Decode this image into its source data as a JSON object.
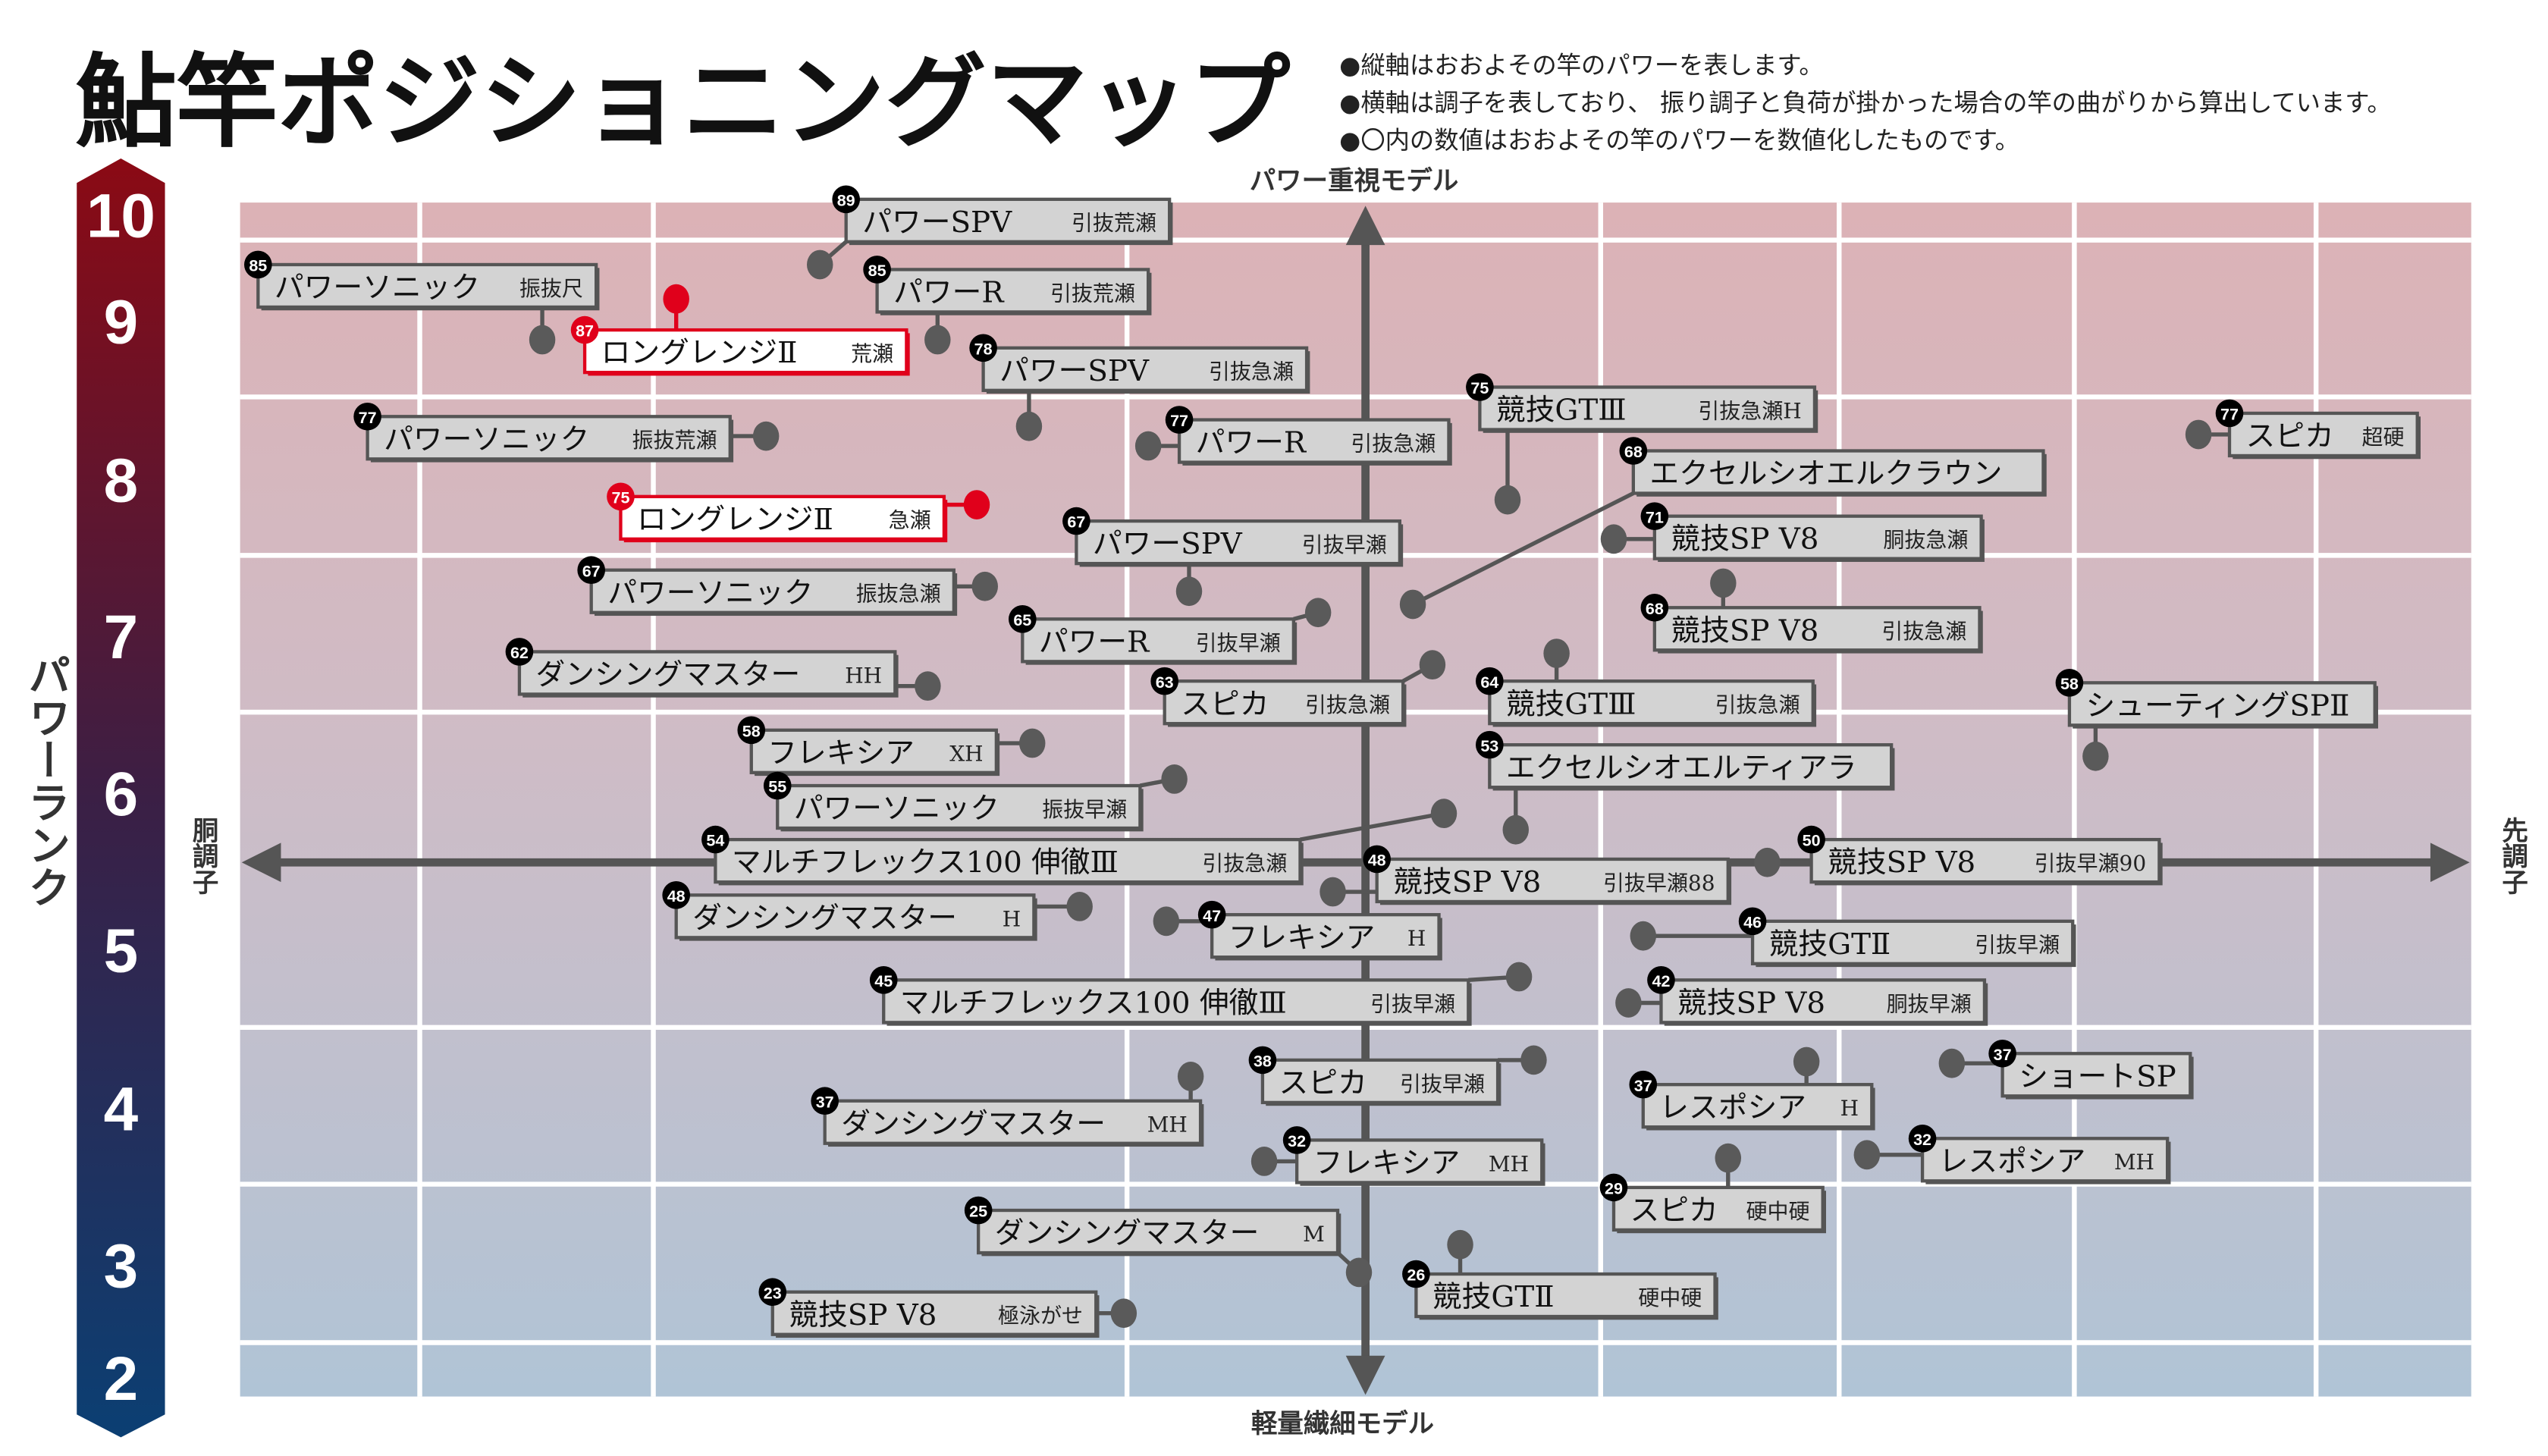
{
  "title": "鮎竿ポジショニングマップ",
  "notes": [
    "●縦軸はおおよその竿のパワーを表します。",
    "●横軸は調子を表しており、 振り調子と負荷が掛かった場合の竿の曲がりから算出しています。",
    "●〇内の数値はおおよその竿のパワーを数値化したものです。"
  ],
  "colors": {
    "highlight": "#e0001b",
    "box_bg": "#d3d3d3",
    "box_border": "#555555",
    "axis": "#555555",
    "rank_top": "#8b0a14",
    "rank_bottom": "#0b3f73"
  },
  "chart_data": {
    "type": "scatter",
    "title": "鮎竿ポジショニングマップ",
    "ylabel": "パワーランク",
    "y_ticks": [
      "10",
      "9",
      "8",
      "7",
      "6",
      "5",
      "4",
      "3",
      "2"
    ],
    "ylim": [
      2,
      10
    ],
    "axis_top": "パワー重視モデル",
    "axis_bottom": "軽量繊細モデル",
    "axis_left": "胴調子",
    "axis_right": "先調子",
    "grid": true,
    "points": [
      {
        "power": "89",
        "name": "パワーSPV",
        "variant": "引抜荒瀬",
        "highlight": false
      },
      {
        "power": "85",
        "name": "パワーソニック",
        "variant": "振抜尺",
        "highlight": false
      },
      {
        "power": "85",
        "name": "パワーR",
        "variant": "引抜荒瀬",
        "highlight": false
      },
      {
        "power": "87",
        "name": "ロングレンジⅡ",
        "variant": "荒瀬",
        "highlight": true
      },
      {
        "power": "78",
        "name": "パワーSPV",
        "variant": "引抜急瀬",
        "highlight": false
      },
      {
        "power": "75",
        "name": "競技GTⅢ",
        "variant": "引抜急瀬H",
        "highlight": false
      },
      {
        "power": "77",
        "name": "スピカ",
        "variant": "超硬",
        "highlight": false
      },
      {
        "power": "77",
        "name": "パワーソニック",
        "variant": "振抜荒瀬",
        "highlight": false
      },
      {
        "power": "77",
        "name": "パワーR",
        "variant": "引抜急瀬",
        "highlight": false
      },
      {
        "power": "68",
        "name": "エクセルシオエルクラウン",
        "variant": "",
        "highlight": false
      },
      {
        "power": "75",
        "name": "ロングレンジⅡ",
        "variant": "急瀬",
        "highlight": true
      },
      {
        "power": "71",
        "name": "競技SP V8",
        "variant": "胴抜急瀬",
        "highlight": false
      },
      {
        "power": "67",
        "name": "パワーSPV",
        "variant": "引抜早瀬",
        "highlight": false
      },
      {
        "power": "67",
        "name": "パワーソニック",
        "variant": "振抜急瀬",
        "highlight": false
      },
      {
        "power": "68",
        "name": "競技SP V8",
        "variant": "引抜急瀬",
        "highlight": false
      },
      {
        "power": "65",
        "name": "パワーR",
        "variant": "引抜早瀬",
        "highlight": false
      },
      {
        "power": "62",
        "name": "ダンシングマスター",
        "variant": "HH",
        "highlight": false
      },
      {
        "power": "63",
        "name": "スピカ",
        "variant": "引抜急瀬",
        "highlight": false
      },
      {
        "power": "64",
        "name": "競技GTⅢ",
        "variant": "引抜急瀬",
        "highlight": false
      },
      {
        "power": "58",
        "name": "シューティングSPⅡ",
        "variant": "",
        "highlight": false
      },
      {
        "power": "58",
        "name": "フレキシア",
        "variant": "XH",
        "highlight": false
      },
      {
        "power": "53",
        "name": "エクセルシオエルティアラ",
        "variant": "",
        "highlight": false
      },
      {
        "power": "55",
        "name": "パワーソニック",
        "variant": "振抜早瀬",
        "highlight": false
      },
      {
        "power": "54",
        "name": "マルチフレックス100 伸徹Ⅲ",
        "variant": "引抜急瀬",
        "highlight": false
      },
      {
        "power": "48",
        "name": "競技SP V8",
        "variant": "引抜早瀬88",
        "highlight": false
      },
      {
        "power": "50",
        "name": "競技SP V8",
        "variant": "引抜早瀬90",
        "highlight": false
      },
      {
        "power": "48",
        "name": "ダンシングマスター",
        "variant": "H",
        "highlight": false
      },
      {
        "power": "47",
        "name": "フレキシア",
        "variant": "H",
        "highlight": false
      },
      {
        "power": "46",
        "name": "競技GTⅡ",
        "variant": "引抜早瀬",
        "highlight": false
      },
      {
        "power": "45",
        "name": "マルチフレックス100 伸徹Ⅲ",
        "variant": "引抜早瀬",
        "highlight": false
      },
      {
        "power": "42",
        "name": "競技SP V8",
        "variant": "胴抜早瀬",
        "highlight": false
      },
      {
        "power": "38",
        "name": "スピカ",
        "variant": "引抜早瀬",
        "highlight": false
      },
      {
        "power": "37",
        "name": "ダンシングマスター",
        "variant": "MH",
        "highlight": false
      },
      {
        "power": "37",
        "name": "ショートSP",
        "variant": "",
        "highlight": false
      },
      {
        "power": "37",
        "name": "レスポシア",
        "variant": "H",
        "highlight": false
      },
      {
        "power": "32",
        "name": "フレキシア",
        "variant": "MH",
        "highlight": false
      },
      {
        "power": "32",
        "name": "レスポシア",
        "variant": "MH",
        "highlight": false
      },
      {
        "power": "29",
        "name": "スピカ",
        "variant": "硬中硬",
        "highlight": false
      },
      {
        "power": "25",
        "name": "ダンシングマスター",
        "variant": "M",
        "highlight": false
      },
      {
        "power": "26",
        "name": "競技GTⅡ",
        "variant": "硬中硬",
        "highlight": false
      },
      {
        "power": "23",
        "name": "競技SP V8",
        "variant": "極泳がせ",
        "highlight": false
      }
    ]
  }
}
